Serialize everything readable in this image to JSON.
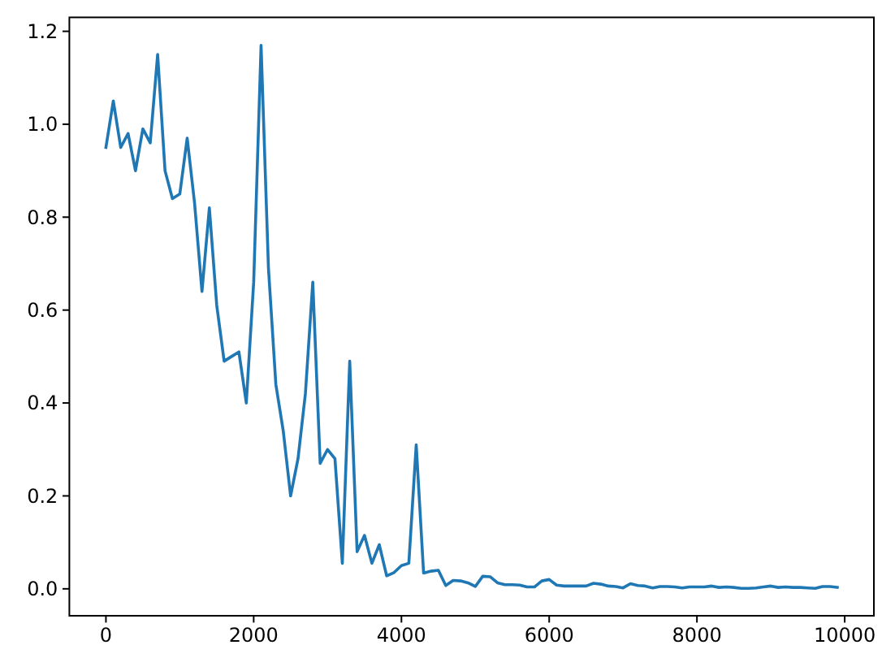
{
  "chart_data": {
    "type": "line",
    "color": "#1f77b4",
    "x": [
      0,
      100,
      200,
      300,
      400,
      500,
      600,
      700,
      800,
      900,
      1000,
      1100,
      1200,
      1300,
      1400,
      1500,
      1600,
      1700,
      1800,
      1900,
      2000,
      2100,
      2200,
      2300,
      2400,
      2500,
      2600,
      2700,
      2800,
      2900,
      3000,
      3100,
      3200,
      3300,
      3400,
      3500,
      3600,
      3700,
      3800,
      3900,
      4000,
      4100,
      4200,
      4300,
      4400,
      4500,
      4600,
      4700,
      4800,
      4900,
      5000,
      5100,
      5200,
      5300,
      5400,
      5500,
      5600,
      5700,
      5800,
      5900,
      6000,
      6100,
      6200,
      6300,
      6400,
      6500,
      6600,
      6700,
      6800,
      6900,
      7000,
      7100,
      7200,
      7300,
      7400,
      7500,
      7600,
      7700,
      7800,
      7900,
      8000,
      8100,
      8200,
      8300,
      8400,
      8500,
      8600,
      8700,
      8800,
      8900,
      9000,
      9100,
      9200,
      9300,
      9400,
      9500,
      9600,
      9700,
      9800,
      9900
    ],
    "values": [
      0.95,
      1.05,
      0.95,
      0.98,
      0.9,
      0.99,
      0.96,
      1.15,
      0.9,
      0.84,
      0.85,
      0.97,
      0.83,
      0.64,
      0.82,
      0.61,
      0.49,
      0.5,
      0.51,
      0.4,
      0.66,
      1.17,
      0.69,
      0.44,
      0.34,
      0.2,
      0.28,
      0.42,
      0.66,
      0.27,
      0.3,
      0.28,
      0.055,
      0.49,
      0.08,
      0.115,
      0.055,
      0.095,
      0.028,
      0.035,
      0.05,
      0.055,
      0.31,
      0.034,
      0.038,
      0.04,
      0.007,
      0.018,
      0.017,
      0.013,
      0.005,
      0.027,
      0.026,
      0.013,
      0.009,
      0.009,
      0.008,
      0.004,
      0.004,
      0.017,
      0.02,
      0.008,
      0.006,
      0.006,
      0.006,
      0.006,
      0.012,
      0.01,
      0.006,
      0.005,
      0.002,
      0.011,
      0.007,
      0.006,
      0.002,
      0.005,
      0.005,
      0.004,
      0.002,
      0.004,
      0.004,
      0.004,
      0.006,
      0.003,
      0.004,
      0.003,
      0.001,
      0.001,
      0.002,
      0.004,
      0.006,
      0.003,
      0.004,
      0.003,
      0.003,
      0.002,
      0.001,
      0.005,
      0.005,
      0.003
    ],
    "xlim": [
      -495,
      10395
    ],
    "ylim": [
      -0.058,
      1.23
    ],
    "xticks": [
      0,
      2000,
      4000,
      6000,
      8000,
      10000
    ],
    "yticks": [
      {
        "value": 0,
        "label": "0.0"
      },
      0.2,
      0.4,
      0.6,
      0.8,
      {
        "value": 1,
        "label": "1.0"
      },
      1.2
    ]
  }
}
